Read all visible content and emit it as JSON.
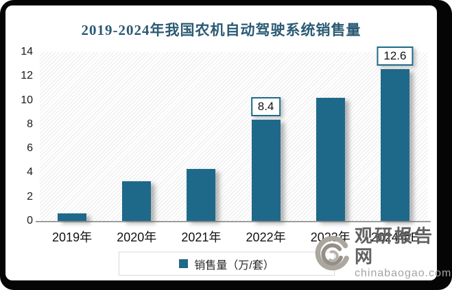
{
  "page": {
    "background_color": "#ffffff",
    "frame_color": "#050505",
    "accent_color": "#1E6989"
  },
  "title": {
    "text": "2019-2024年我国农机自动驾驶系统销售量",
    "color": "#2b5a73"
  },
  "chart_data": {
    "type": "bar",
    "title": "2019-2024年我国农机自动驾驶系统销售量",
    "categories": [
      "2019年",
      "2020年",
      "2021年",
      "2022年",
      "2023年",
      "2024年E"
    ],
    "series": [
      {
        "name": "销售量（万/套）",
        "values": [
          0.6,
          3.3,
          4.3,
          8.4,
          10.2,
          12.6
        ],
        "color": "#1E6989"
      }
    ],
    "point_labels": [
      null,
      null,
      null,
      "8.4",
      null,
      "12.6"
    ],
    "xlabel": "",
    "ylabel": "",
    "ylim": [
      0,
      14
    ],
    "yticks": [
      0,
      2,
      4,
      6,
      8,
      10,
      12,
      14
    ],
    "grid": false,
    "plot_background": "diagonal-hatch",
    "legend_position": "bottom"
  },
  "legend": {
    "label": "销售量（万/套）",
    "marker_color": "#1E6989"
  },
  "watermark": {
    "brand": "观研报告网",
    "domain": "chinabaogao.com",
    "logo": "swirl-logo"
  }
}
